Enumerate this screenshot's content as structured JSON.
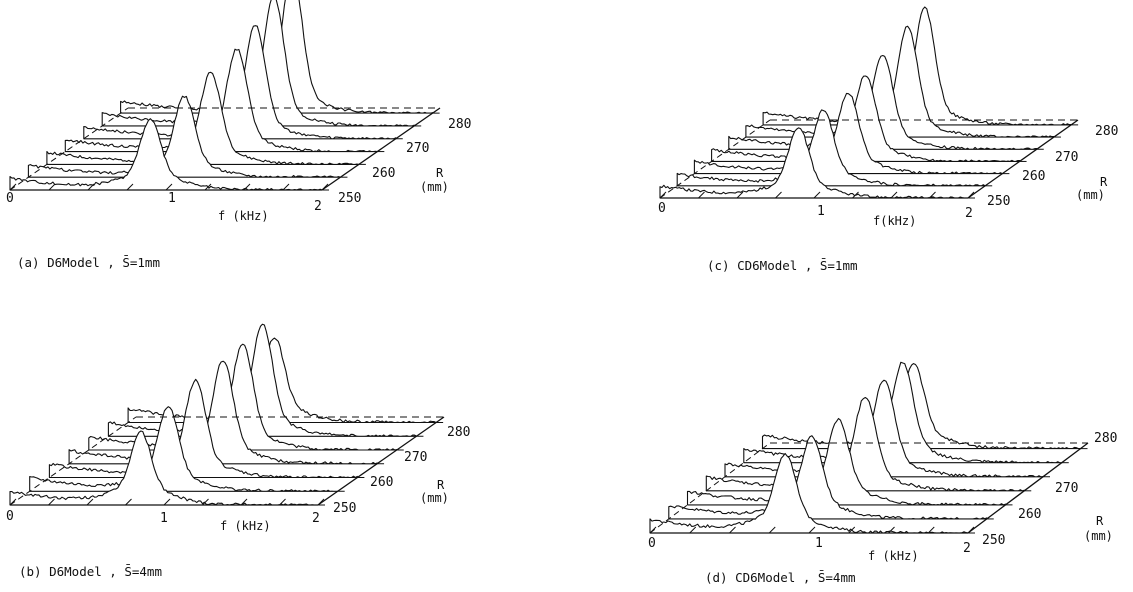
{
  "chart_data": [
    {
      "id": "a",
      "type": "waterfall",
      "caption": "(a) D6Model , S̄=1mm",
      "x_ticks": [
        "0",
        "1",
        "2"
      ],
      "xlabel": "f (kHz)",
      "r_ticks": [
        "250",
        "260",
        "270",
        "280"
      ],
      "rlabel_top": "R",
      "rlabel_bottom": "(mm)",
      "xlim": [
        0,
        2
      ],
      "rlim": [
        250,
        282
      ],
      "series": [
        {
          "r": 250,
          "peak_f": 0.9,
          "peak_amp": 1.0
        },
        {
          "r": 255,
          "peak_f": 1.0,
          "peak_amp": 1.2
        },
        {
          "r": 260,
          "peak_f": 1.05,
          "peak_amp": 1.4
        },
        {
          "r": 265,
          "peak_f": 1.1,
          "peak_amp": 1.6
        },
        {
          "r": 270,
          "peak_f": 1.1,
          "peak_amp": 1.8
        },
        {
          "r": 275,
          "peak_f": 1.1,
          "peak_amp": 2.1
        },
        {
          "r": 280,
          "peak_f": 1.1,
          "peak_amp": 2.3
        }
      ]
    },
    {
      "id": "c",
      "type": "waterfall",
      "caption": "(c) CD6Model , S̄=1mm",
      "x_ticks": [
        "0",
        "1",
        "2"
      ],
      "xlabel": "f(kHz)",
      "r_ticks": [
        "250",
        "260",
        "270",
        "280"
      ],
      "rlabel_top": "R",
      "rlabel_bottom": "(mm)",
      "xlim": [
        0,
        2
      ],
      "rlim": [
        250,
        282
      ],
      "series": [
        {
          "r": 250,
          "peak_f": 0.9,
          "peak_amp": 1.0
        },
        {
          "r": 255,
          "peak_f": 0.95,
          "peak_amp": 1.1
        },
        {
          "r": 260,
          "peak_f": 1.0,
          "peak_amp": 1.2
        },
        {
          "r": 265,
          "peak_f": 1.0,
          "peak_amp": 1.3
        },
        {
          "r": 270,
          "peak_f": 1.0,
          "peak_amp": 1.45
        },
        {
          "r": 275,
          "peak_f": 1.05,
          "peak_amp": 1.75
        },
        {
          "r": 280,
          "peak_f": 1.05,
          "peak_amp": 1.85
        }
      ]
    },
    {
      "id": "b",
      "type": "waterfall",
      "caption": "(b) D6Model , S̄=4mm",
      "x_ticks": [
        "0",
        "1",
        "2"
      ],
      "xlabel": "f (kHz)",
      "r_ticks": [
        "250",
        "260",
        "270",
        "280"
      ],
      "rlabel_top": "R",
      "rlabel_bottom": "(mm)",
      "xlim": [
        0,
        2
      ],
      "rlim": [
        250,
        282
      ],
      "series": [
        {
          "r": 250,
          "peak_f": 0.85,
          "peak_amp": 0.9
        },
        {
          "r": 255,
          "peak_f": 0.9,
          "peak_amp": 1.1
        },
        {
          "r": 260,
          "peak_f": 0.95,
          "peak_amp": 1.3
        },
        {
          "r": 265,
          "peak_f": 1.0,
          "peak_amp": 1.4
        },
        {
          "r": 270,
          "peak_f": 1.0,
          "peak_amp": 1.45
        },
        {
          "r": 275,
          "peak_f": 1.0,
          "peak_amp": 1.55
        },
        {
          "r": 280,
          "peak_f": 0.95,
          "peak_amp": 1.1
        }
      ]
    },
    {
      "id": "d",
      "type": "waterfall",
      "caption": "(d) CD6Model , S̄=4mm",
      "x_ticks": [
        "0",
        "1",
        "2"
      ],
      "xlabel": "f (kHz)",
      "r_ticks": [
        "250",
        "260",
        "270",
        "280"
      ],
      "rlabel_top": "R",
      "rlabel_bottom": "(mm)",
      "xlim": [
        0,
        2
      ],
      "rlim": [
        250,
        282
      ],
      "series": [
        {
          "r": 250,
          "peak_f": 0.85,
          "peak_amp": 1.0
        },
        {
          "r": 255,
          "peak_f": 0.9,
          "peak_amp": 1.05
        },
        {
          "r": 260,
          "peak_f": 0.95,
          "peak_amp": 1.1
        },
        {
          "r": 265,
          "peak_f": 1.0,
          "peak_amp": 1.25
        },
        {
          "r": 270,
          "peak_f": 1.0,
          "peak_amp": 1.3
        },
        {
          "r": 275,
          "peak_f": 1.0,
          "peak_amp": 1.35
        },
        {
          "r": 280,
          "peak_f": 0.95,
          "peak_amp": 1.1
        }
      ]
    }
  ]
}
